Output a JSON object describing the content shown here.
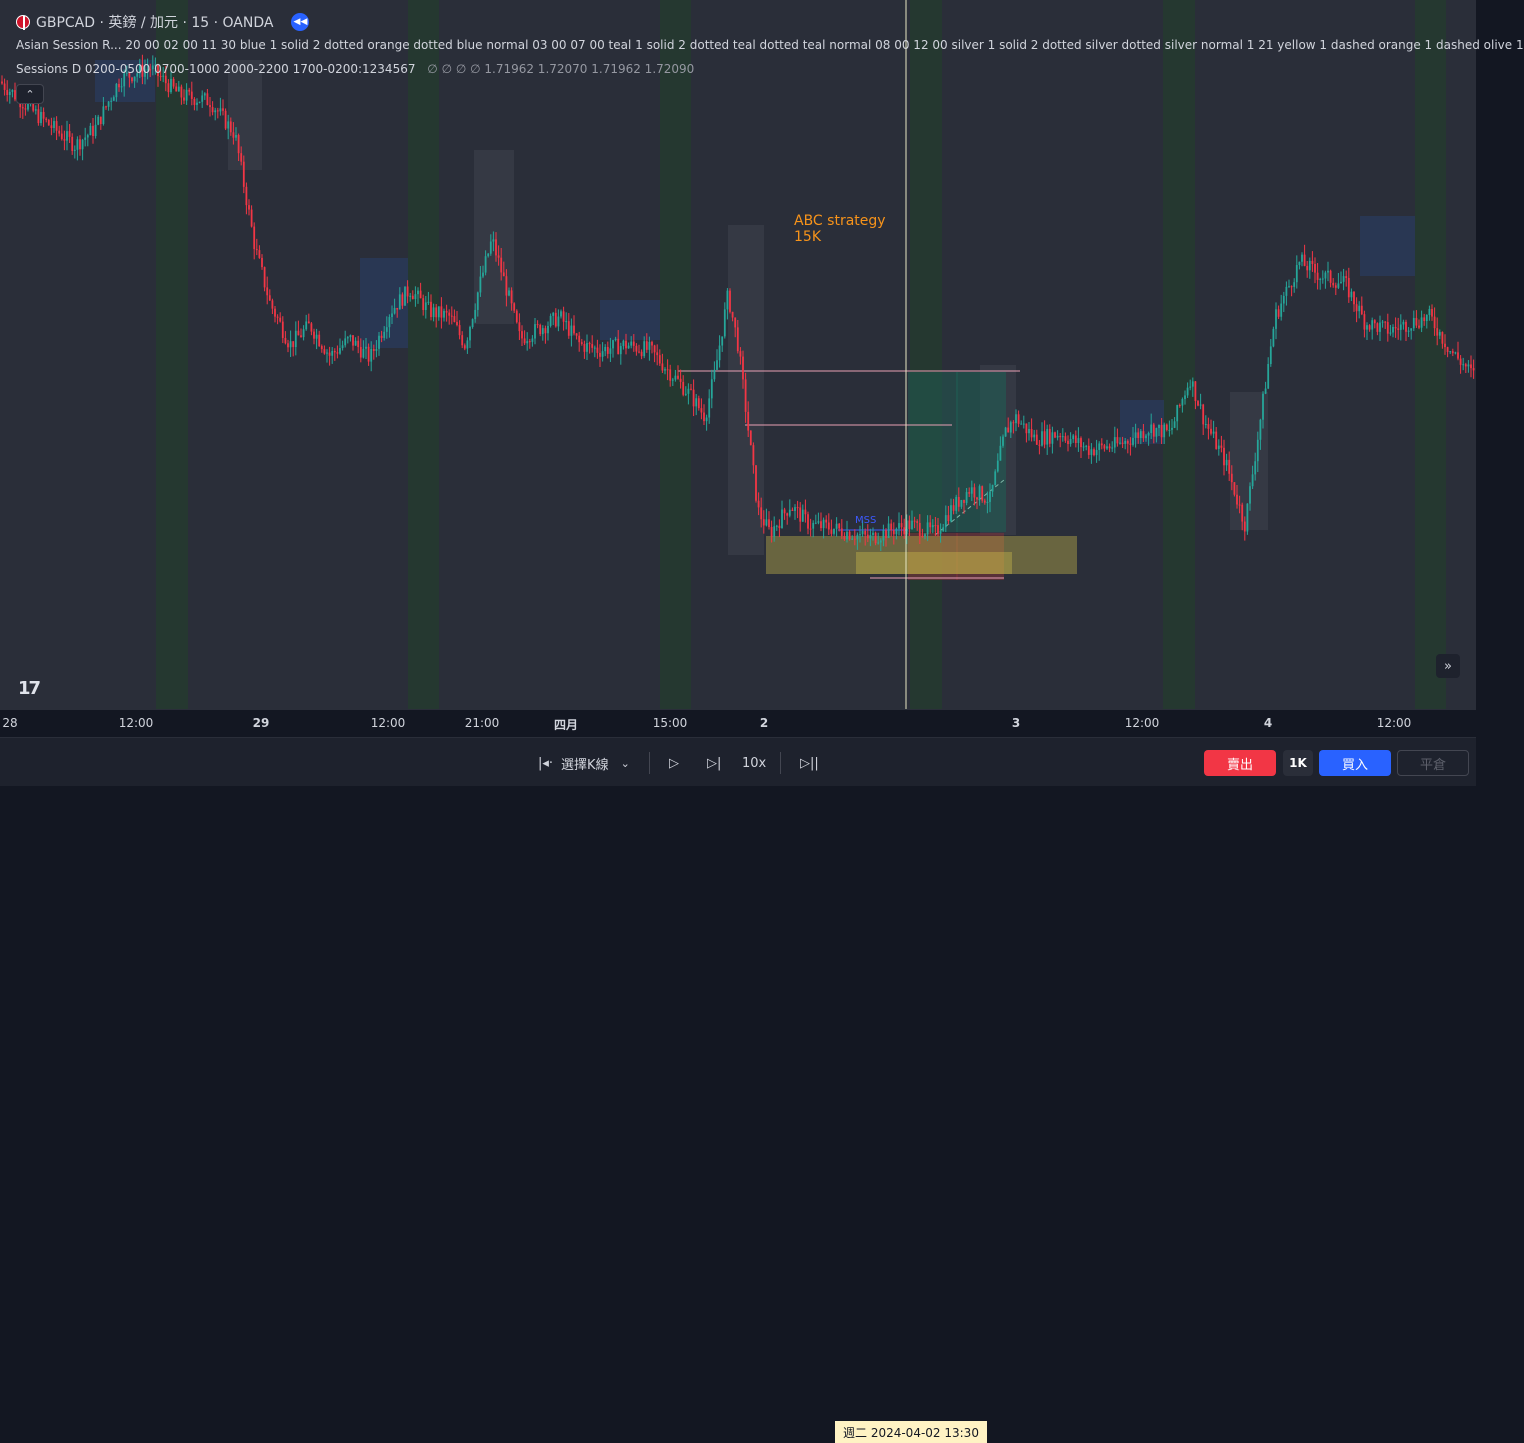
{
  "header": {
    "symbol_title": "GBPCAD · 英鎊 / 加元 · 15 · OANDA",
    "indicator_1": "Asian Session R...  20 00 02 00 11 30 blue 1 solid 2 dotted orange dotted blue normal 03 00 07 00 teal 1 solid 2 dotted teal dotted teal normal 08 00 12 00 silver 1 solid 2 dotted silver dotted silver normal 1 21 yellow 1 dashed orange 1 dashed olive 1",
    "indicator_2": "Sessions D 0200-0500 0700-1000 2000-2200 1700-0200:1234567",
    "indicator_2_values": "∅ ∅ ∅ ∅  1.71962  1.72070  1.71962  1.72090"
  },
  "icons": {
    "flag": "gbp-cad-flag-icon",
    "replay": "replay-rewind-icon",
    "collapse": "chevron-up-icon",
    "scroll": "double-chevron-right-icon",
    "logo": "tradingview-logo-icon"
  },
  "annotations": {
    "strategy_line1": "ABC strategy",
    "strategy_line2": "15K",
    "mss": "MSS"
  },
  "time_axis": {
    "labels": [
      "28",
      "12:00",
      "29",
      "12:00",
      "21:00",
      "四月",
      "15:00",
      "2",
      "3",
      "12:00",
      "4",
      "12:00"
    ],
    "crosshair_label": "週二 2024-04-02   13:30"
  },
  "replay_bar": {
    "select_bar": "選擇K線",
    "speed": "10x"
  },
  "trade": {
    "sell": "賣出",
    "qty": "1K",
    "buy": "買入",
    "close": "平倉"
  },
  "colors": {
    "bull": "#26a69a",
    "bear": "#f23645",
    "accent": "#2962ff",
    "annotation": "#f7931a",
    "mss": "#3d5afe"
  },
  "chart_data": {
    "type": "candlestick",
    "symbol": "GBPCAD",
    "interval": "15",
    "source": "OANDA",
    "path": [
      [
        0,
        1.7245
      ],
      [
        40,
        1.7232
      ],
      [
        75,
        1.7222
      ],
      [
        95,
        1.7228
      ],
      [
        120,
        1.7246
      ],
      [
        150,
        1.725
      ],
      [
        180,
        1.724
      ],
      [
        210,
        1.7238
      ],
      [
        235,
        1.7226
      ],
      [
        255,
        1.7185
      ],
      [
        270,
        1.7165
      ],
      [
        290,
        1.715
      ],
      [
        310,
        1.7157
      ],
      [
        330,
        1.7146
      ],
      [
        350,
        1.7152
      ],
      [
        370,
        1.7145
      ],
      [
        390,
        1.7162
      ],
      [
        410,
        1.717
      ],
      [
        430,
        1.7162
      ],
      [
        450,
        1.716
      ],
      [
        465,
        1.715
      ],
      [
        480,
        1.7172
      ],
      [
        492,
        1.7188
      ],
      [
        505,
        1.7172
      ],
      [
        520,
        1.7152
      ],
      [
        540,
        1.7156
      ],
      [
        560,
        1.716
      ],
      [
        580,
        1.715
      ],
      [
        600,
        1.7148
      ],
      [
        625,
        1.715
      ],
      [
        650,
        1.7148
      ],
      [
        670,
        1.714
      ],
      [
        690,
        1.7132
      ],
      [
        705,
        1.7124
      ],
      [
        715,
        1.714
      ],
      [
        728,
        1.7168
      ],
      [
        738,
        1.715
      ],
      [
        748,
        1.712
      ],
      [
        758,
        1.709
      ],
      [
        770,
        1.7082
      ],
      [
        790,
        1.7092
      ],
      [
        810,
        1.7085
      ],
      [
        830,
        1.7084
      ],
      [
        850,
        1.7082
      ],
      [
        870,
        1.708
      ],
      [
        890,
        1.7083
      ],
      [
        910,
        1.7085
      ],
      [
        935,
        1.7082
      ],
      [
        950,
        1.709
      ],
      [
        970,
        1.7098
      ],
      [
        990,
        1.7094
      ],
      [
        1005,
        1.7118
      ],
      [
        1015,
        1.7124
      ],
      [
        1035,
        1.7116
      ],
      [
        1060,
        1.7118
      ],
      [
        1090,
        1.7112
      ],
      [
        1120,
        1.7114
      ],
      [
        1150,
        1.712
      ],
      [
        1170,
        1.7118
      ],
      [
        1190,
        1.7138
      ],
      [
        1205,
        1.7122
      ],
      [
        1225,
        1.7108
      ],
      [
        1245,
        1.7085
      ],
      [
        1260,
        1.7122
      ],
      [
        1275,
        1.716
      ],
      [
        1290,
        1.7172
      ],
      [
        1300,
        1.718
      ],
      [
        1320,
        1.7175
      ],
      [
        1345,
        1.7172
      ],
      [
        1365,
        1.7158
      ],
      [
        1390,
        1.7155
      ],
      [
        1410,
        1.7158
      ],
      [
        1430,
        1.716
      ],
      [
        1450,
        1.7148
      ],
      [
        1476,
        1.7138
      ]
    ]
  }
}
